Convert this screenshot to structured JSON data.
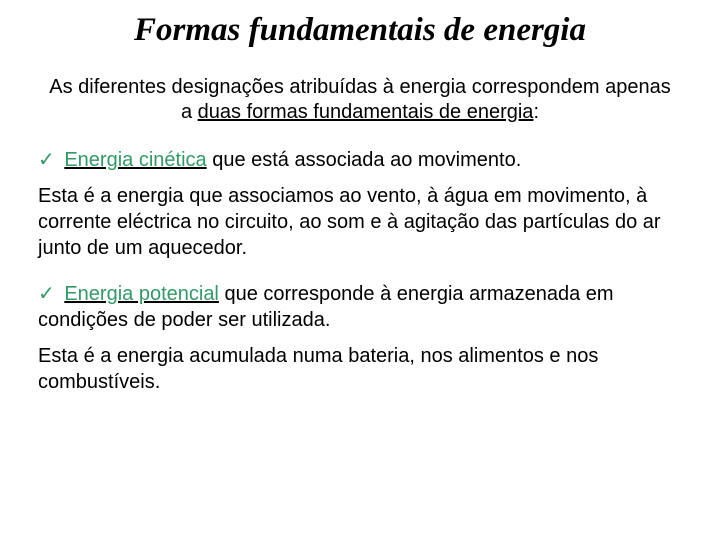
{
  "title": "Formas fundamentais de energia",
  "intro_pre": "As diferentes designações atribuídas à energia correspondem apenas a ",
  "intro_underlined": "duas formas fundamentais de energia",
  "intro_post": ":",
  "check_glyph": "✓",
  "kinetic_term": "Energia cinética",
  "kinetic_rest": " que está associada ao movimento.",
  "kinetic_para": "Esta é a energia que associamos ao vento, à água em movimento, à corrente eléctrica no circuito, ao som e à agitação das partículas do ar junto de um aquecedor.",
  "potential_term": "Energia potencial",
  "potential_rest": " que corresponde à energia armazenada em condições de poder ser utilizada.",
  "potential_para": "Esta é a energia acumulada numa bateria, nos alimentos e nos combustíveis.",
  "colors": {
    "accent_green": "#339966",
    "text": "#000000",
    "background": "#ffffff"
  },
  "typography": {
    "title_family": "Georgia serif italic bold",
    "body_family": "Comic Sans MS",
    "title_fontsize": 33,
    "body_fontsize": 20
  }
}
